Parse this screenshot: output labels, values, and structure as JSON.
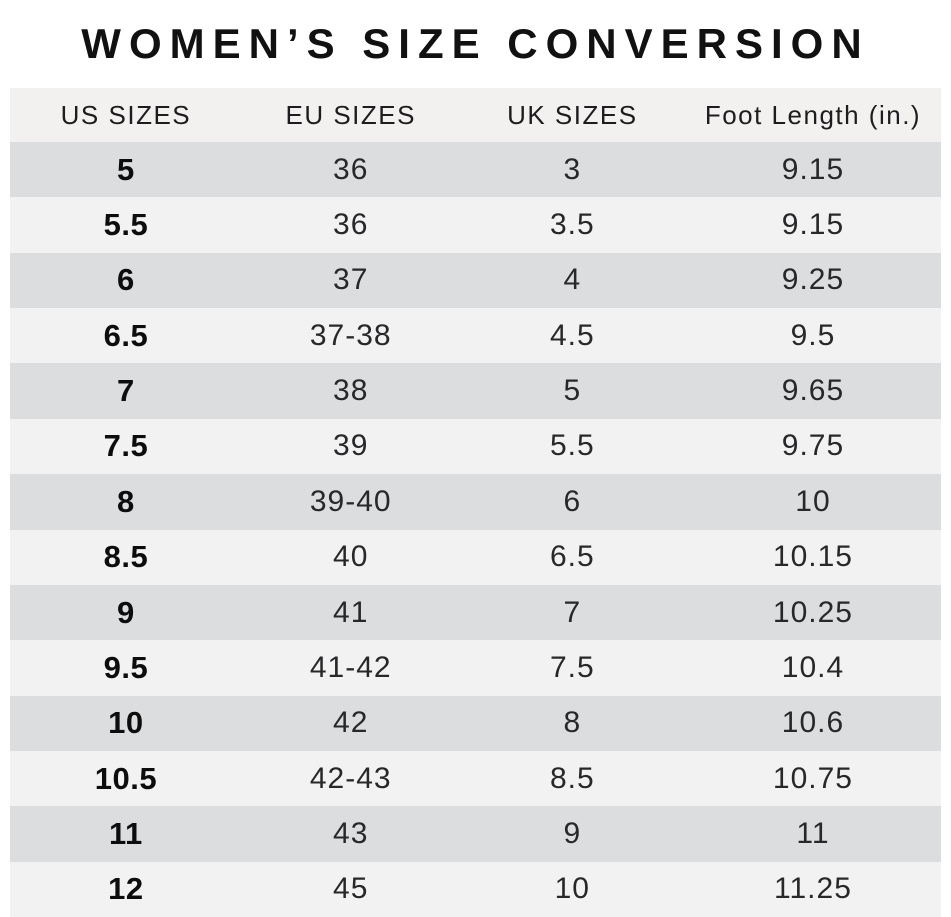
{
  "title": "WOMEN’S SIZE CONVERSION",
  "table": {
    "columns": [
      "US SIZES",
      "EU SIZES",
      "UK SIZES",
      "Foot Length (in.)"
    ],
    "rows": [
      [
        "5",
        "36",
        "3",
        "9.15"
      ],
      [
        "5.5",
        "36",
        "3.5",
        "9.15"
      ],
      [
        "6",
        "37",
        "4",
        "9.25"
      ],
      [
        "6.5",
        "37-38",
        "4.5",
        "9.5"
      ],
      [
        "7",
        "38",
        "5",
        "9.65"
      ],
      [
        "7.5",
        "39",
        "5.5",
        "9.75"
      ],
      [
        "8",
        "39-40",
        "6",
        "10"
      ],
      [
        "8.5",
        "40",
        "6.5",
        "10.15"
      ],
      [
        "9",
        "41",
        "7",
        "10.25"
      ],
      [
        "9.5",
        "41-42",
        "7.5",
        "10.4"
      ],
      [
        "10",
        "42",
        "8",
        "10.6"
      ],
      [
        "10.5",
        "42-43",
        "8.5",
        "10.75"
      ],
      [
        "11",
        "43",
        "9",
        "11"
      ],
      [
        "12",
        "45",
        "10",
        "11.25"
      ]
    ]
  },
  "colors": {
    "title_text": "#111111",
    "header_bg": "#f2f1f0",
    "row_dark": "#dcddde",
    "row_light": "#f2f2f3",
    "text": "#28282a"
  }
}
